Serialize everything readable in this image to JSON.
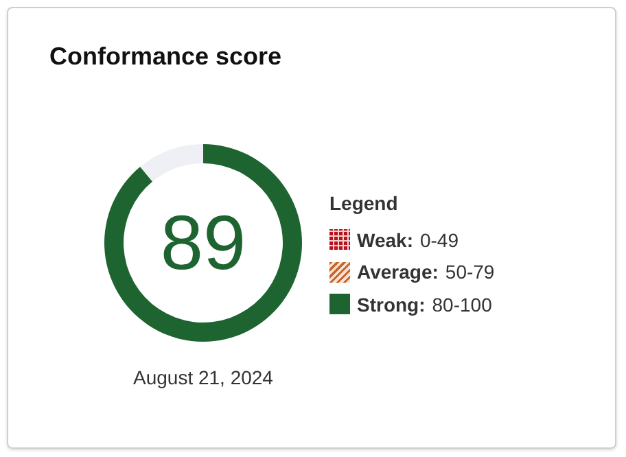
{
  "chart_data": {
    "type": "donut",
    "title": "Conformance score",
    "categories": [
      null,
      null
    ],
    "values": [
      89,
      11
    ],
    "colors": [
      "#1e6430",
      "#eef0f5"
    ],
    "value_labels": [
      "89",
      null
    ],
    "annotations": [
      "August 21, 2024",
      "Legend",
      "Weak: 0-49",
      "Average: 50-79",
      "Strong: 80-100"
    ]
  }
}
